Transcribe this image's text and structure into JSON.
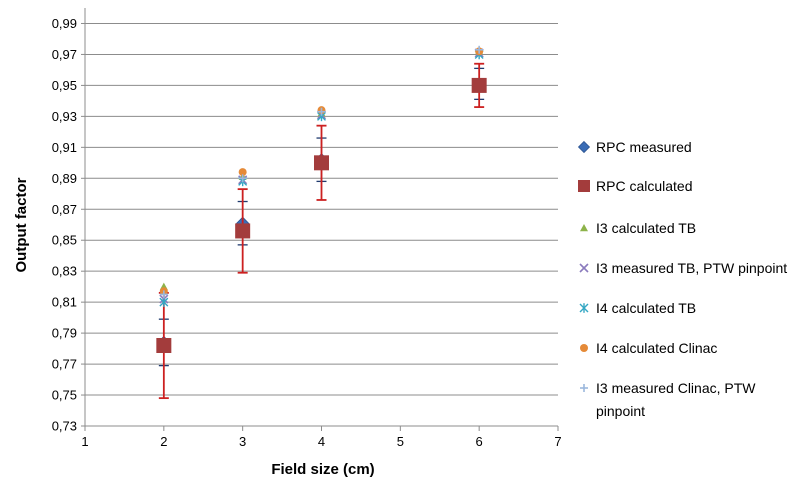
{
  "chart_data": {
    "type": "scatter",
    "xlabel": "Field size (cm)",
    "ylabel": "Output factor",
    "xlim": [
      1,
      7
    ],
    "ylim": [
      0.73,
      1.0
    ],
    "x_ticks": [
      1,
      2,
      3,
      4,
      5,
      6,
      7
    ],
    "y_ticks": [
      "0,73",
      "0,75",
      "0,77",
      "0,79",
      "0,81",
      "0,83",
      "0,85",
      "0,87",
      "0,89",
      "0,91",
      "0,93",
      "0,95",
      "0,97",
      "0,99"
    ],
    "grid": "horizontal",
    "legend": "right",
    "series": [
      {
        "name": "RPC measured",
        "color": "#3a6cb5",
        "marker": "diamond",
        "points": [
          {
            "x": 2,
            "y": 0.784,
            "err": 0.015
          },
          {
            "x": 3,
            "y": 0.861,
            "err": 0.014
          },
          {
            "x": 4,
            "y": 0.902,
            "err": 0.014
          },
          {
            "x": 6,
            "y": 0.951,
            "err": 0.01
          }
        ]
      },
      {
        "name": "RPC calculated",
        "color": "#a33c3c",
        "errcolor": "#cc2020",
        "marker": "square",
        "points": [
          {
            "x": 2,
            "y": 0.782,
            "err": 0.034
          },
          {
            "x": 3,
            "y": 0.856,
            "err": 0.027
          },
          {
            "x": 4,
            "y": 0.9,
            "err": 0.024
          },
          {
            "x": 6,
            "y": 0.95,
            "err": 0.014
          }
        ]
      },
      {
        "name": "I3 calculated TB",
        "color": "#8db34a",
        "marker": "triangle",
        "points": [
          {
            "x": 2,
            "y": 0.82
          },
          {
            "x": 3,
            "y": 0.891
          },
          {
            "x": 4,
            "y": 0.932
          },
          {
            "x": 6,
            "y": 0.972
          }
        ]
      },
      {
        "name": "I3 measured TB, PTW pinpoint",
        "color": "#8b7bbd",
        "marker": "x",
        "points": [
          {
            "x": 2,
            "y": 0.812
          },
          {
            "x": 3,
            "y": 0.889
          },
          {
            "x": 4,
            "y": 0.931
          },
          {
            "x": 6,
            "y": 0.971
          }
        ]
      },
      {
        "name": "I4 calculated TB",
        "color": "#35a7c4",
        "marker": "star",
        "points": [
          {
            "x": 2,
            "y": 0.81
          },
          {
            "x": 3,
            "y": 0.888
          },
          {
            "x": 4,
            "y": 0.93
          },
          {
            "x": 6,
            "y": 0.97
          }
        ]
      },
      {
        "name": "I4 calculated Clinac",
        "color": "#e58a38",
        "marker": "circle",
        "points": [
          {
            "x": 2,
            "y": 0.817
          },
          {
            "x": 3,
            "y": 0.894
          },
          {
            "x": 4,
            "y": 0.934
          },
          {
            "x": 6,
            "y": 0.972
          }
        ]
      },
      {
        "name": "I3 measured Clinac, PTW pinpoint",
        "legend_lines": [
          "I3 measured Clinac, PTW",
          "pinpoint"
        ],
        "color": "#9bb7dc",
        "marker": "plus",
        "points": [
          {
            "x": 2,
            "y": 0.815
          },
          {
            "x": 3,
            "y": 0.89
          },
          {
            "x": 4,
            "y": 0.933
          },
          {
            "x": 6,
            "y": 0.973
          }
        ]
      }
    ]
  }
}
